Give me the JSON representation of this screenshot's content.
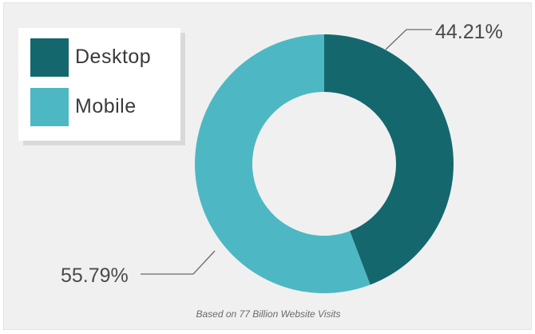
{
  "colors": {
    "desktop": "#15676e",
    "mobile": "#4db8c4",
    "leader": "#6a6a6a"
  },
  "legend": {
    "items": [
      {
        "label": "Desktop",
        "color": "#15676e"
      },
      {
        "label": "Mobile",
        "color": "#4db8c4"
      }
    ]
  },
  "chart_data": {
    "type": "pie",
    "donut": true,
    "categories": [
      "Desktop",
      "Mobile"
    ],
    "values": [
      44.21,
      55.79
    ],
    "data_labels": [
      "44.21%",
      "55.79%"
    ],
    "legend_position": "top-left",
    "annotation": "Based on 77 Billion Website Visits"
  }
}
